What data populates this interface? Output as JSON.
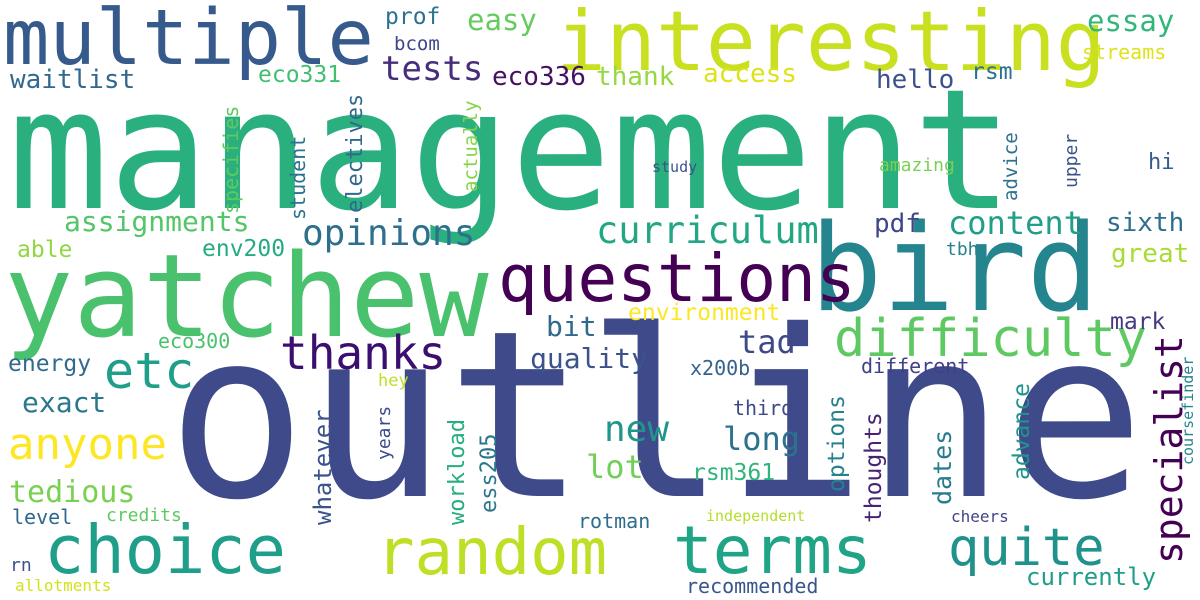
{
  "words": [
    {
      "text": "management",
      "color": "#2ab07f"
    },
    {
      "text": "outline",
      "color": "#3e4a89"
    },
    {
      "text": "yatchew",
      "color": "#4ac16d"
    },
    {
      "text": "bird",
      "color": "#25858e"
    },
    {
      "text": "multiple",
      "color": "#375a8c"
    },
    {
      "text": "interesting",
      "color": "#c8e020"
    },
    {
      "text": "questions",
      "color": "#440154"
    },
    {
      "text": "random",
      "color": "#bddf26"
    },
    {
      "text": "choice",
      "color": "#1f9e89"
    },
    {
      "text": "terms",
      "color": "#20a486"
    },
    {
      "text": "difficulty",
      "color": "#5ec962"
    },
    {
      "text": "quite",
      "color": "#21918c"
    },
    {
      "text": "thanks",
      "color": "#3b0f70"
    },
    {
      "text": "etc",
      "color": "#1f9e89"
    },
    {
      "text": "anyone",
      "color": "#fde725"
    },
    {
      "text": "curriculum",
      "color": "#22a785"
    },
    {
      "text": "opinions",
      "color": "#2e6f8e"
    },
    {
      "text": "specialist",
      "color": "#440154"
    },
    {
      "text": "tests",
      "color": "#472d7b"
    },
    {
      "text": "essay",
      "color": "#32b67a"
    },
    {
      "text": "content",
      "color": "#1f9e89"
    },
    {
      "text": "assignments",
      "color": "#54c568"
    },
    {
      "text": "new",
      "color": "#1f968b"
    },
    {
      "text": "long",
      "color": "#2c728e"
    },
    {
      "text": "lot",
      "color": "#70cf57"
    },
    {
      "text": "tedious",
      "color": "#7ad151"
    },
    {
      "text": "exact",
      "color": "#2a788e"
    },
    {
      "text": "environment",
      "color": "#fde725"
    },
    {
      "text": "eco336",
      "color": "#471063"
    },
    {
      "text": "easy",
      "color": "#65cb5e"
    },
    {
      "text": "access",
      "color": "#dde318"
    },
    {
      "text": "thank",
      "color": "#95d840"
    },
    {
      "text": "hello",
      "color": "#3b528b"
    },
    {
      "text": "waitlist",
      "color": "#31688e"
    },
    {
      "text": "eco331",
      "color": "#42be71"
    },
    {
      "text": "prof",
      "color": "#2c728e"
    },
    {
      "text": "bcom",
      "color": "#3f4788"
    },
    {
      "text": "rsm",
      "color": "#2c728e"
    },
    {
      "text": "streams",
      "color": "#dde318"
    },
    {
      "text": "tad",
      "color": "#3e4989"
    },
    {
      "text": "bit",
      "color": "#31688e"
    },
    {
      "text": "quality",
      "color": "#3b528b"
    },
    {
      "text": "pdf",
      "color": "#3f4788"
    },
    {
      "text": "sixth",
      "color": "#2e6e8e"
    },
    {
      "text": "great",
      "color": "#a8db34"
    },
    {
      "text": "mark",
      "color": "#443a83"
    },
    {
      "text": "able",
      "color": "#90d743"
    },
    {
      "text": "env200",
      "color": "#25ab82"
    },
    {
      "text": "energy",
      "color": "#306a8e"
    },
    {
      "text": "eco300",
      "color": "#4ac16d"
    },
    {
      "text": "level",
      "color": "#31688e"
    },
    {
      "text": "credits",
      "color": "#5ec962"
    },
    {
      "text": "rn",
      "color": "#3b528b"
    },
    {
      "text": "allotments",
      "color": "#d2e21b"
    },
    {
      "text": "currently",
      "color": "#1f9e89"
    },
    {
      "text": "recommended",
      "color": "#39558c"
    },
    {
      "text": "rotman",
      "color": "#2f6c8e"
    },
    {
      "text": "independent",
      "color": "#b5de2b"
    },
    {
      "text": "cheers",
      "color": "#414487"
    },
    {
      "text": "rsm361",
      "color": "#2fb47c"
    },
    {
      "text": "third",
      "color": "#3e4989"
    },
    {
      "text": "x200b",
      "color": "#33638d"
    },
    {
      "text": "different",
      "color": "#424086"
    },
    {
      "text": "amazing",
      "color": "#7ad151"
    },
    {
      "text": "study",
      "color": "#3a548c"
    },
    {
      "text": "hi",
      "color": "#375b8d"
    },
    {
      "text": "hey",
      "color": "#bddf26"
    },
    {
      "text": "tbh",
      "color": "#26818e"
    },
    {
      "text": "specifies",
      "color": "#5ec962"
    },
    {
      "text": "student",
      "color": "#2c728e"
    },
    {
      "text": "electives",
      "color": "#31688e"
    },
    {
      "text": "actually",
      "color": "#86d549"
    },
    {
      "text": "whatever",
      "color": "#3b528b"
    },
    {
      "text": "workload",
      "color": "#27ad81"
    },
    {
      "text": "ess205",
      "color": "#2a778e"
    },
    {
      "text": "options",
      "color": "#26818e"
    },
    {
      "text": "thoughts",
      "color": "#482374"
    },
    {
      "text": "dates",
      "color": "#287c8e"
    },
    {
      "text": "advance",
      "color": "#1f948c"
    },
    {
      "text": "advice",
      "color": "#2c718e"
    },
    {
      "text": "upper",
      "color": "#3b528b"
    },
    {
      "text": "coursefinder",
      "color": "#25858e"
    },
    {
      "text": "years",
      "color": "#3e4a89"
    }
  ]
}
